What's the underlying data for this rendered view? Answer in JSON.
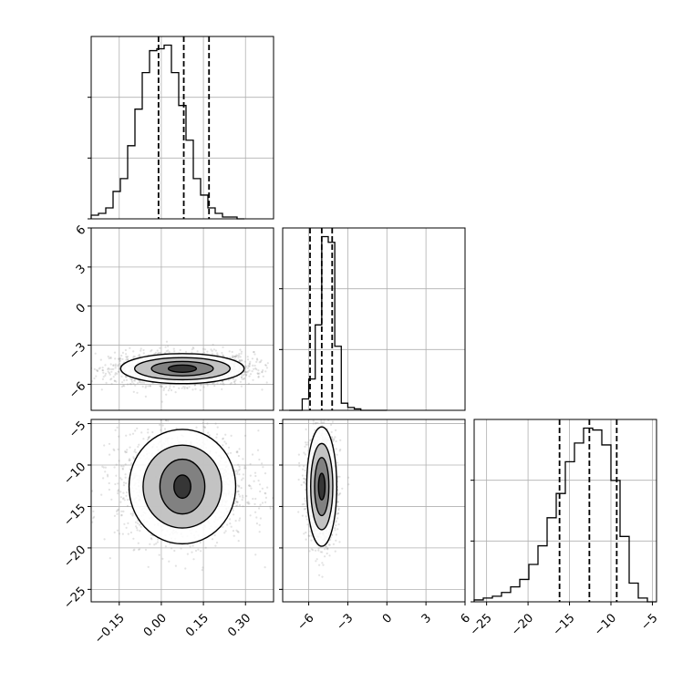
{
  "chart_data": {
    "type": "corner",
    "grid": true,
    "parameters": [
      {
        "range": [
          -0.25,
          0.4
        ],
        "ticks": [
          -0.15,
          0.0,
          0.15,
          0.3
        ],
        "tick_labels": [
          "−0.15",
          "0.00",
          "0.15",
          "0.30"
        ],
        "quantiles": [
          -0.01,
          0.08,
          0.17
        ],
        "hist": {
          "start": -0.25,
          "bin_width": 0.026,
          "counts": [
            2,
            3,
            6,
            15,
            22,
            40,
            60,
            80,
            92,
            93,
            95,
            80,
            62,
            43,
            22,
            13,
            6,
            3,
            1,
            1,
            0
          ]
        }
      },
      {
        "range": [
          -8,
          6
        ],
        "ticks": [
          -6,
          -3,
          0,
          3,
          6
        ],
        "tick_labels": [
          "−6",
          "−3",
          "0",
          "3",
          "6"
        ],
        "quantiles": [
          -5.9,
          -5.0,
          -4.2
        ],
        "hist": {
          "start": -7.5,
          "bin_width": 0.5,
          "counts": [
            0,
            0,
            8,
            22,
            60,
            122,
            118,
            45,
            5,
            2,
            1,
            0,
            0,
            0,
            0
          ]
        }
      },
      {
        "range": [
          -26.5,
          -4.5
        ],
        "ticks": [
          -25,
          -20,
          -15,
          -10,
          -5
        ],
        "tick_labels": [
          "−25",
          "−20",
          "−15",
          "−10",
          "−5"
        ],
        "quantiles": [
          -16.2,
          -12.6,
          -9.3
        ],
        "hist": {
          "start": -26.5,
          "bin_width": 1.1,
          "counts": [
            1,
            2,
            3,
            5,
            8,
            12,
            20,
            30,
            45,
            58,
            75,
            85,
            93,
            92,
            84,
            65,
            35,
            10,
            2,
            0
          ]
        }
      }
    ],
    "pairs": [
      {
        "x_param": 0,
        "y_param": 1,
        "center": [
          0.075,
          -4.8
        ],
        "spread": [
          0.11,
          0.55
        ],
        "contour_levels": [
          {
            "rx": 0.05,
            "ry": 0.28
          },
          {
            "rx": 0.11,
            "ry": 0.55
          },
          {
            "rx": 0.17,
            "ry": 0.85
          },
          {
            "rx": 0.22,
            "ry": 1.15
          }
        ]
      },
      {
        "x_param": 0,
        "y_param": 2,
        "center": [
          0.075,
          -12.6
        ],
        "spread": [
          0.1,
          2.8
        ],
        "contour_levels": [
          {
            "rx": 0.03,
            "ry": 1.4
          },
          {
            "rx": 0.08,
            "ry": 3.3
          },
          {
            "rx": 0.14,
            "ry": 5.0
          },
          {
            "rx": 0.19,
            "ry": 6.9
          }
        ]
      },
      {
        "x_param": 1,
        "y_param": 2,
        "center": [
          -5.0,
          -12.6
        ],
        "spread": [
          0.5,
          2.8
        ],
        "contour_levels": [
          {
            "rx": 0.25,
            "ry": 1.6
          },
          {
            "rx": 0.55,
            "ry": 3.5
          },
          {
            "rx": 0.85,
            "ry": 5.2
          },
          {
            "rx": 1.15,
            "ry": 7.2
          }
        ]
      }
    ]
  }
}
